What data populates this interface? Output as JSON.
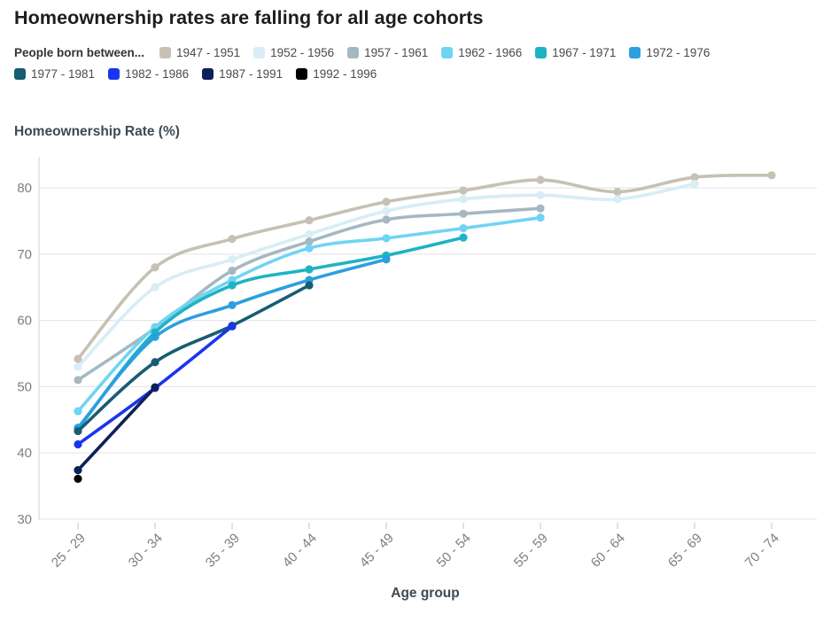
{
  "page": {
    "title": "Homeownership rates are falling for all age cohorts"
  },
  "legend": {
    "title": "People born between..."
  },
  "chart_data": {
    "type": "line",
    "title": "Homeownership rates are falling for all age cohorts",
    "ylabel_heading": "Homeownership Rate (%)",
    "xlabel": "Age group",
    "categories": [
      "25 - 29",
      "30 - 34",
      "35 - 39",
      "40 - 44",
      "45 - 49",
      "50 - 54",
      "55 - 59",
      "60 - 64",
      "65 - 69",
      "70 - 74"
    ],
    "y_ticks": [
      30,
      40,
      50,
      60,
      70,
      80
    ],
    "ylim": [
      30,
      84
    ],
    "grid": true,
    "legend_position": "top",
    "series": [
      {
        "name": "1947 - 1951",
        "color": "#c6c1b2",
        "values": [
          54.2,
          68.0,
          72.3,
          75.1,
          77.9,
          79.6,
          81.2,
          79.4,
          81.6,
          81.9
        ]
      },
      {
        "name": "1952 - 1956",
        "color": "#d8edf6",
        "values": [
          53.0,
          65.0,
          69.2,
          73.0,
          76.5,
          78.3,
          78.9,
          78.3,
          80.6
        ]
      },
      {
        "name": "1957 - 1961",
        "color": "#a5b8c2",
        "values": [
          51.0,
          58.8,
          67.5,
          71.9,
          75.2,
          76.1,
          76.9
        ]
      },
      {
        "name": "1962 - 1966",
        "color": "#6fd4f4",
        "values": [
          46.3,
          59.0,
          66.1,
          70.9,
          72.4,
          73.9,
          75.5
        ]
      },
      {
        "name": "1967 - 1971",
        "color": "#1eb3c3",
        "values": [
          43.6,
          58.2,
          65.3,
          67.7,
          69.8,
          72.5
        ]
      },
      {
        "name": "1972 - 1976",
        "color": "#2b9fe0",
        "values": [
          43.8,
          57.5,
          62.3,
          66.1,
          69.2
        ]
      },
      {
        "name": "1977 - 1981",
        "color": "#175d73",
        "values": [
          43.3,
          53.7,
          59.2,
          65.3
        ]
      },
      {
        "name": "1982 - 1986",
        "color": "#1a35ef",
        "values": [
          41.3,
          49.8,
          59.1
        ]
      },
      {
        "name": "1987 - 1991",
        "color": "#0e2058",
        "values": [
          37.4,
          49.9
        ]
      },
      {
        "name": "1992 - 1996",
        "color": "#000000",
        "values": [
          36.1
        ]
      }
    ]
  }
}
